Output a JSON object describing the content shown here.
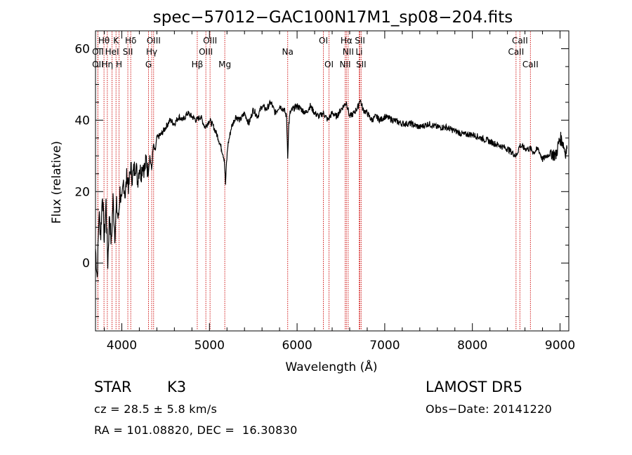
{
  "chart_data": {
    "type": "line",
    "title": "spec−57012−GAC100N17M1_sp08−204.fits",
    "xlabel": "Wavelength (Å)",
    "ylabel": "Flux (relative)",
    "xlim": [
      3700,
      9100
    ],
    "ylim": [
      -19,
      65
    ],
    "x_ticks": [
      4000,
      5000,
      6000,
      7000,
      8000,
      9000
    ],
    "y_ticks": [
      0,
      20,
      40,
      60
    ],
    "grid": false,
    "series": [
      {
        "x": [
          3700,
          3720,
          3740,
          3760,
          3780,
          3800,
          3820,
          3840,
          3860,
          3880,
          3900,
          3920,
          3940,
          3960,
          3980,
          4000,
          4020,
          4040,
          4060,
          4080,
          4100,
          4120,
          4140,
          4160,
          4180,
          4200,
          4220,
          4240,
          4260,
          4280,
          4300,
          4320,
          4340,
          4360,
          4380,
          4400,
          4450,
          4500,
          4550,
          4600,
          4650,
          4700,
          4750,
          4800,
          4850,
          4900,
          4950,
          5000,
          5050,
          5100,
          5150,
          5170,
          5183,
          5195,
          5210,
          5250,
          5300,
          5350,
          5400,
          5450,
          5500,
          5550,
          5600,
          5650,
          5700,
          5750,
          5800,
          5850,
          5880,
          5893,
          5906,
          5920,
          5950,
          6000,
          6050,
          6100,
          6150,
          6200,
          6250,
          6300,
          6350,
          6400,
          6450,
          6500,
          6563,
          6600,
          6650,
          6700,
          6717,
          6750,
          6800,
          6850,
          6900,
          6950,
          7000,
          7100,
          7200,
          7300,
          7400,
          7500,
          7600,
          7700,
          7800,
          7900,
          8000,
          8100,
          8200,
          8300,
          8400,
          8450,
          8500,
          8542,
          8600,
          8662,
          8700,
          8750,
          8800,
          8850,
          8900,
          8950,
          9000,
          9030,
          9060,
          9080
        ],
        "values": [
          4,
          -4,
          14,
          8,
          20,
          6,
          17,
          0,
          14,
          5,
          18,
          8,
          16,
          12,
          20,
          16,
          23,
          19,
          25,
          21,
          27,
          24,
          26,
          28,
          23,
          27,
          25,
          28,
          26,
          29,
          25,
          30,
          26,
          33,
          31,
          35,
          36,
          38,
          40,
          39,
          41,
          40,
          42,
          41,
          40,
          41,
          38,
          40,
          38,
          35,
          31,
          29,
          22,
          28,
          33,
          38,
          41,
          40,
          42,
          39,
          43,
          41,
          44,
          43,
          45,
          42,
          44,
          43,
          41,
          30,
          39,
          42,
          43,
          44,
          43,
          42,
          44,
          42,
          41,
          42,
          40,
          42,
          41,
          43,
          45,
          41,
          42,
          44,
          46,
          43,
          42,
          40,
          41,
          40,
          41,
          40,
          39,
          39,
          38,
          39,
          38,
          38,
          37,
          36,
          36,
          35,
          34,
          33,
          32,
          31,
          30,
          33,
          32,
          32,
          31,
          32,
          29,
          30,
          31,
          30,
          35,
          34,
          31,
          32
        ]
      }
    ],
    "line_labels": [
      {
        "label": "Hθ",
        "x": 3797
      },
      {
        "label": "K",
        "x": 3934
      },
      {
        "label": "Hδ",
        "x": 4102
      },
      {
        "label": "OIII",
        "x": 4363
      },
      {
        "label": "OIII",
        "x": 5007
      },
      {
        "label": "OI",
        "x": 6300
      },
      {
        "label": "Hα",
        "x": 6563
      },
      {
        "label": "SII",
        "x": 6717
      },
      {
        "label": "CaII",
        "x": 8542
      },
      {
        "label": "OII",
        "x": 3727
      },
      {
        "label": "HeI",
        "x": 3889
      },
      {
        "label": "SII",
        "x": 4069
      },
      {
        "label": "Hγ",
        "x": 4341
      },
      {
        "label": "OIII",
        "x": 4959
      },
      {
        "label": "Na",
        "x": 5893
      },
      {
        "label": "NII",
        "x": 6583
      },
      {
        "label": "Li",
        "x": 6708
      },
      {
        "label": "CaII",
        "x": 8498
      },
      {
        "label": "OII",
        "x": 3727
      },
      {
        "label": "Hη",
        "x": 3835
      },
      {
        "label": "H",
        "x": 3969
      },
      {
        "label": "G",
        "x": 4305
      },
      {
        "label": "Hβ",
        "x": 4861
      },
      {
        "label": "Mg",
        "x": 5175
      },
      {
        "label": "OI",
        "x": 6364
      },
      {
        "label": "NII",
        "x": 6548
      },
      {
        "label": "SII",
        "x": 6731
      },
      {
        "label": "CaII",
        "x": 8662
      }
    ],
    "colors": {
      "spectrum": "#000000",
      "lines": "#cc0000",
      "axes": "#000000",
      "background": "#ffffff"
    }
  },
  "info": {
    "object_class": "STAR",
    "subclass": "K3",
    "survey": "LAMOST DR5",
    "redshift": "cz = 28.5 ± 5.8 km/s",
    "obs_date": "Obs−Date: 20141220",
    "coords": "RA = 101.08820, DEC =  16.30830"
  }
}
